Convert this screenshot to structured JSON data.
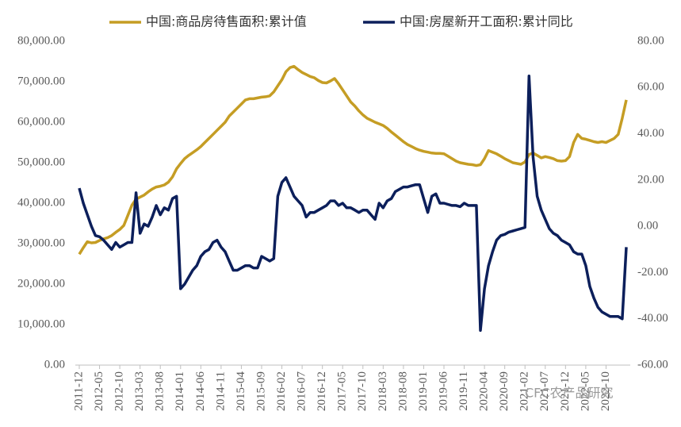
{
  "chart_data": {
    "type": "line",
    "categories": [
      "2011-12",
      null,
      null,
      null,
      null,
      "2012-05",
      null,
      null,
      null,
      null,
      "2012-10",
      null,
      null,
      null,
      null,
      "2013-03",
      null,
      null,
      null,
      null,
      "2013-08",
      null,
      null,
      null,
      null,
      "2014-01",
      null,
      null,
      null,
      null,
      "2014-06",
      null,
      null,
      null,
      null,
      "2014-11",
      null,
      null,
      null,
      null,
      "2015-04",
      null,
      null,
      null,
      null,
      "2015-09",
      null,
      null,
      null,
      null,
      "2016-02",
      null,
      null,
      null,
      null,
      "2016-07",
      null,
      null,
      null,
      null,
      "2016-12",
      null,
      null,
      null,
      null,
      "2017-05",
      null,
      null,
      null,
      null,
      "2017-10",
      null,
      null,
      null,
      null,
      "2018-03",
      null,
      null,
      null,
      null,
      "2018-08",
      null,
      null,
      null,
      null,
      "2019-01",
      null,
      null,
      null,
      null,
      "2019-06",
      null,
      null,
      null,
      null,
      "2019-11",
      null,
      null,
      null,
      null,
      "2020-04",
      null,
      null,
      null,
      null,
      "2020-09",
      null,
      null,
      null,
      null,
      "2021-02",
      null,
      null,
      null,
      null,
      "2021-07",
      null,
      null,
      null,
      null,
      "2021-12",
      null,
      null,
      null,
      null,
      "2022-05",
      null,
      null,
      null,
      null,
      "2022-10",
      null,
      null,
      null,
      null,
      null
    ],
    "series": [
      {
        "name": "中国:商品房待售面积:累计值",
        "color": "#c59d24",
        "axis": "y",
        "values": [
          27400,
          29000,
          30500,
          30200,
          30300,
          30800,
          31200,
          31500,
          32000,
          32800,
          33500,
          34500,
          37000,
          39500,
          41000,
          41500,
          42000,
          42800,
          43500,
          44000,
          44200,
          44500,
          45200,
          46500,
          48500,
          49800,
          51000,
          51800,
          52500,
          53200,
          54000,
          55000,
          56000,
          57000,
          58000,
          59000,
          60000,
          61500,
          62500,
          63500,
          64500,
          65500,
          65800,
          65800,
          66000,
          66200,
          66300,
          66500,
          67500,
          69000,
          70500,
          72500,
          73500,
          73800,
          73000,
          72300,
          71800,
          71300,
          71000,
          70300,
          69800,
          69700,
          70200,
          70800,
          69500,
          68000,
          66500,
          65000,
          64000,
          62800,
          61800,
          61000,
          60500,
          60000,
          59600,
          59200,
          58500,
          57600,
          56800,
          56000,
          55200,
          54500,
          54000,
          53500,
          53100,
          52800,
          52600,
          52400,
          52300,
          52300,
          52200,
          51600,
          51000,
          50400,
          50000,
          49800,
          49600,
          49500,
          49300,
          49500,
          51000,
          53000,
          52600,
          52200,
          51600,
          51000,
          50500,
          50000,
          49800,
          49600,
          50200,
          52000,
          52400,
          51800,
          51200,
          51500,
          51300,
          51000,
          50500,
          50400,
          50500,
          51500,
          55000,
          57000,
          56000,
          55800,
          55500,
          55200,
          55000,
          55200,
          55000,
          55500,
          56000,
          57000,
          61000,
          65500
        ]
      },
      {
        "name": "中国:房屋新开工面积:累计同比",
        "color": "#0c1f5b",
        "axis": "y2",
        "values": [
          16.5,
          10,
          5,
          0,
          -4,
          -4.5,
          -6,
          -8,
          -10,
          -7,
          -9,
          -8,
          -7,
          -7,
          14.5,
          -3,
          1,
          0,
          4,
          9,
          5,
          8,
          7,
          12,
          13,
          -27,
          -25,
          -22,
          -19,
          -17,
          -13,
          -11,
          -10,
          -7,
          -6,
          -9,
          -11,
          -15,
          -19,
          -19,
          -18,
          -17,
          -17,
          -18,
          -18,
          -13,
          -14,
          -15,
          -14,
          13,
          19,
          21,
          17,
          13,
          11,
          9,
          4,
          6,
          6,
          7,
          8,
          9,
          11,
          11,
          9,
          10,
          8,
          8,
          7,
          6,
          7,
          7,
          5,
          3,
          10,
          8,
          11,
          12,
          15,
          16,
          17,
          17,
          17.5,
          18,
          18,
          12,
          6,
          13,
          14,
          10,
          10,
          9.5,
          9,
          9,
          8.5,
          10,
          9,
          9,
          9,
          -45,
          -27,
          -17,
          -11,
          -6,
          -4,
          -3.5,
          -2.5,
          -2,
          -1.5,
          -1,
          -0.5,
          65,
          30,
          13,
          7,
          3,
          -1,
          -3,
          -4,
          -6,
          -7,
          -8,
          -11,
          -12,
          -12,
          -17,
          -26,
          -31,
          -35,
          -37,
          -38,
          -39,
          -39,
          -39,
          -40,
          -9
        ]
      }
    ],
    "ylim": [
      0,
      80000
    ],
    "yticks": [
      {
        "value": 0,
        "label": "0.00"
      },
      {
        "value": 10000,
        "label": "10,000.00"
      },
      {
        "value": 20000,
        "label": "20,000.00"
      },
      {
        "value": 30000,
        "label": "30,000.00"
      },
      {
        "value": 40000,
        "label": "40,000.00"
      },
      {
        "value": 50000,
        "label": "50,000.00"
      },
      {
        "value": 60000,
        "label": "60,000.00"
      },
      {
        "value": 70000,
        "label": "70,000.00"
      },
      {
        "value": 80000,
        "label": "80,000.00"
      }
    ],
    "y2lim": [
      -60,
      80
    ],
    "y2ticks": [
      {
        "value": -60,
        "label": "-60.00"
      },
      {
        "value": -40,
        "label": "-40.00"
      },
      {
        "value": -20,
        "label": "-20.00"
      },
      {
        "value": 0,
        "label": "0.00"
      },
      {
        "value": 20,
        "label": "20.00"
      },
      {
        "value": 40,
        "label": "40.00"
      },
      {
        "value": 60,
        "label": "60.00"
      },
      {
        "value": 80,
        "label": "80.00"
      }
    ],
    "legend": "top",
    "watermark": "CFC农产品研究"
  }
}
